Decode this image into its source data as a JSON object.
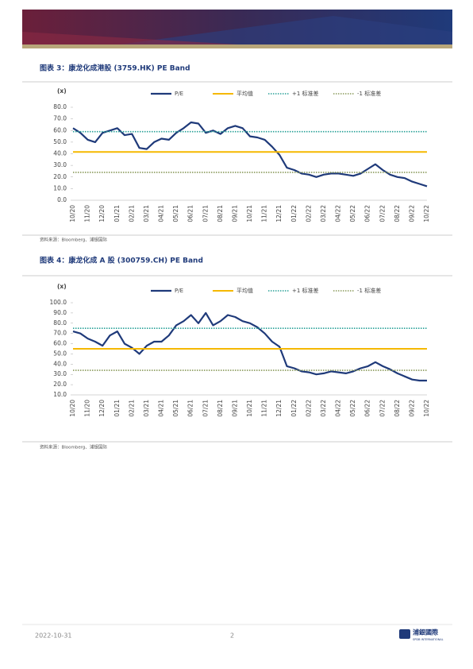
{
  "chart_data": [
    {
      "type": "line",
      "title": "图表 3：康龙化成港股 (3759.HK) PE Band",
      "y_label": "(x)",
      "source": "资料来源：Bloomberg、浦银国际",
      "categories": [
        "10/20",
        null,
        "11/20",
        null,
        "12/20",
        null,
        "01/21",
        null,
        "02/21",
        null,
        "03/21",
        null,
        "04/21",
        null,
        "05/21",
        null,
        "06/21",
        null,
        "07/21",
        null,
        "08/21",
        null,
        "09/21",
        null,
        "10/21",
        null,
        "11/21",
        null,
        "12/21",
        null,
        "01/22",
        null,
        "02/22",
        null,
        "03/22",
        null,
        "04/22",
        null,
        "05/22",
        null,
        "06/22",
        null,
        "07/22",
        null,
        "08/22",
        null,
        "09/22",
        null,
        "10/22"
      ],
      "ylim": [
        0,
        80
      ],
      "yticks": [
        {
          "value": 0,
          "label": "0.0"
        },
        {
          "value": 10,
          "label": "10.0"
        },
        {
          "value": 20,
          "label": "20.0"
        },
        {
          "value": 30,
          "label": "30.0"
        },
        {
          "value": 40,
          "label": "40.0"
        },
        {
          "value": 50,
          "label": "50.0"
        },
        {
          "value": 60,
          "label": "60.0"
        },
        {
          "value": 70,
          "label": "70.0"
        },
        {
          "value": 80,
          "label": "80.0"
        }
      ],
      "series": [
        {
          "name": "P/E",
          "color": "#1f3a7a",
          "values": [
            62,
            58,
            52,
            50,
            58,
            60,
            62,
            56,
            57,
            45,
            44,
            50,
            53,
            52,
            58,
            62,
            67,
            66,
            58,
            60,
            57,
            62,
            64,
            62,
            55,
            54,
            52,
            46,
            39,
            28,
            26,
            23,
            22,
            20,
            22,
            23,
            23,
            22,
            21,
            23,
            27,
            31,
            26,
            22,
            20,
            19,
            16,
            14,
            12
          ]
        },
        {
          "name": "平均值",
          "color": "#f5b800",
          "style": "solid",
          "value": 41.5
        },
        {
          "name": "+1 标准差",
          "color": "#2aa198",
          "style": "dotted",
          "value": 59
        },
        {
          "name": "-1 标准差",
          "color": "#8a9a5b",
          "style": "dotted",
          "value": 24
        }
      ]
    },
    {
      "type": "line",
      "title": "图表 4：康龙化成 A 股 (300759.CH) PE Band",
      "y_label": "(x)",
      "source": "资料来源：Bloomberg、浦银国际",
      "categories": [
        "10/20",
        null,
        "11/20",
        null,
        "12/20",
        null,
        "01/21",
        null,
        "02/21",
        null,
        "03/21",
        null,
        "04/21",
        null,
        "05/21",
        null,
        "06/21",
        null,
        "07/21",
        null,
        "08/21",
        null,
        "09/21",
        null,
        "10/21",
        null,
        "11/21",
        null,
        "12/21",
        null,
        "01/22",
        null,
        "02/22",
        null,
        "03/22",
        null,
        "04/22",
        null,
        "05/22",
        null,
        "06/22",
        null,
        "07/22",
        null,
        "08/22",
        null,
        "09/22",
        null,
        "10/22"
      ],
      "ylim": [
        10,
        100
      ],
      "yticks": [
        {
          "value": 10,
          "label": "10.0"
        },
        {
          "value": 20,
          "label": "20.0"
        },
        {
          "value": 30,
          "label": "30.0"
        },
        {
          "value": 40,
          "label": "40.0"
        },
        {
          "value": 50,
          "label": "50.0"
        },
        {
          "value": 60,
          "label": "60.0"
        },
        {
          "value": 70,
          "label": "70.0"
        },
        {
          "value": 80,
          "label": "80.0"
        },
        {
          "value": 90,
          "label": "90.0"
        },
        {
          "value": 100,
          "label": "100.0"
        }
      ],
      "series": [
        {
          "name": "P/E",
          "color": "#1f3a7a",
          "values": [
            72,
            70,
            65,
            62,
            58,
            68,
            72,
            60,
            56,
            50,
            58,
            62,
            62,
            68,
            78,
            82,
            88,
            80,
            90,
            78,
            82,
            88,
            86,
            82,
            80,
            76,
            70,
            62,
            57,
            38,
            36,
            33,
            32,
            30,
            31,
            33,
            32,
            31,
            33,
            36,
            38,
            42,
            38,
            35,
            31,
            28,
            25,
            24,
            24
          ]
        },
        {
          "name": "平均值",
          "color": "#f5b800",
          "style": "solid",
          "value": 55
        },
        {
          "name": "+1 标准差",
          "color": "#2aa198",
          "style": "dotted",
          "value": 75
        },
        {
          "name": "-1 标准差",
          "color": "#8a9a5b",
          "style": "dotted",
          "value": 34
        }
      ]
    }
  ],
  "footer": {
    "date": "2022-10-31",
    "page": "2",
    "logo": "浦銀國際",
    "logo_sub": "SPDB INTERNATIONAL"
  }
}
